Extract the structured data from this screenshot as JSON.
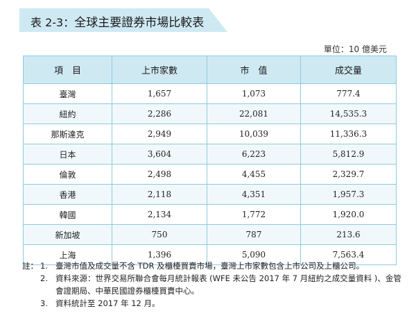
{
  "title": {
    "code": "表 2-3：",
    "text": "全球主要證券市場比較表"
  },
  "unit": "單位：10 億美元",
  "table": {
    "headers": [
      "項　目",
      "上市家數",
      "市　值",
      "成交量"
    ],
    "rows": [
      {
        "name": "臺灣",
        "listed": "1,657",
        "market_cap": "1,073",
        "volume": "777.4"
      },
      {
        "name": "紐約",
        "listed": "2,286",
        "market_cap": "22,081",
        "volume": "14,535.3"
      },
      {
        "name": "那斯達克",
        "listed": "2,949",
        "market_cap": "10,039",
        "volume": "11,336.3"
      },
      {
        "name": "日本",
        "listed": "3,604",
        "market_cap": "6,223",
        "volume": "5,812.9"
      },
      {
        "name": "倫敦",
        "listed": "2,498",
        "market_cap": "4,455",
        "volume": "2,329.7"
      },
      {
        "name": "香港",
        "listed": "2,118",
        "market_cap": "4,351",
        "volume": "1,957.3"
      },
      {
        "name": "韓國",
        "listed": "2,134",
        "market_cap": "1,772",
        "volume": "1,920.0"
      },
      {
        "name": "新加坡",
        "listed": "750",
        "market_cap": "787",
        "volume": "213.6"
      },
      {
        "name": "上海",
        "listed": "1,396",
        "market_cap": "5,090",
        "volume": "7,563.4"
      }
    ]
  },
  "notes": {
    "label": "註：",
    "items": [
      {
        "num": "1.",
        "text": "臺灣市值及成交量不含 TDR 及櫃檯買賣市場，臺灣上市家數包含上市公司及上櫃公司。"
      },
      {
        "num": "2.",
        "text": "資料來源：世界交易所聯合會每月統計報表 (WFE 未公告 2017 年 7 月紐約之成交量資料 )、金管會證期局、中華民國證券櫃檯買賣中心。"
      },
      {
        "num": "3.",
        "text": "資料統計至 2017 年 12 月。"
      }
    ]
  },
  "colors": {
    "header_fill": "#cfe9f3",
    "border": "#8fc9df"
  }
}
